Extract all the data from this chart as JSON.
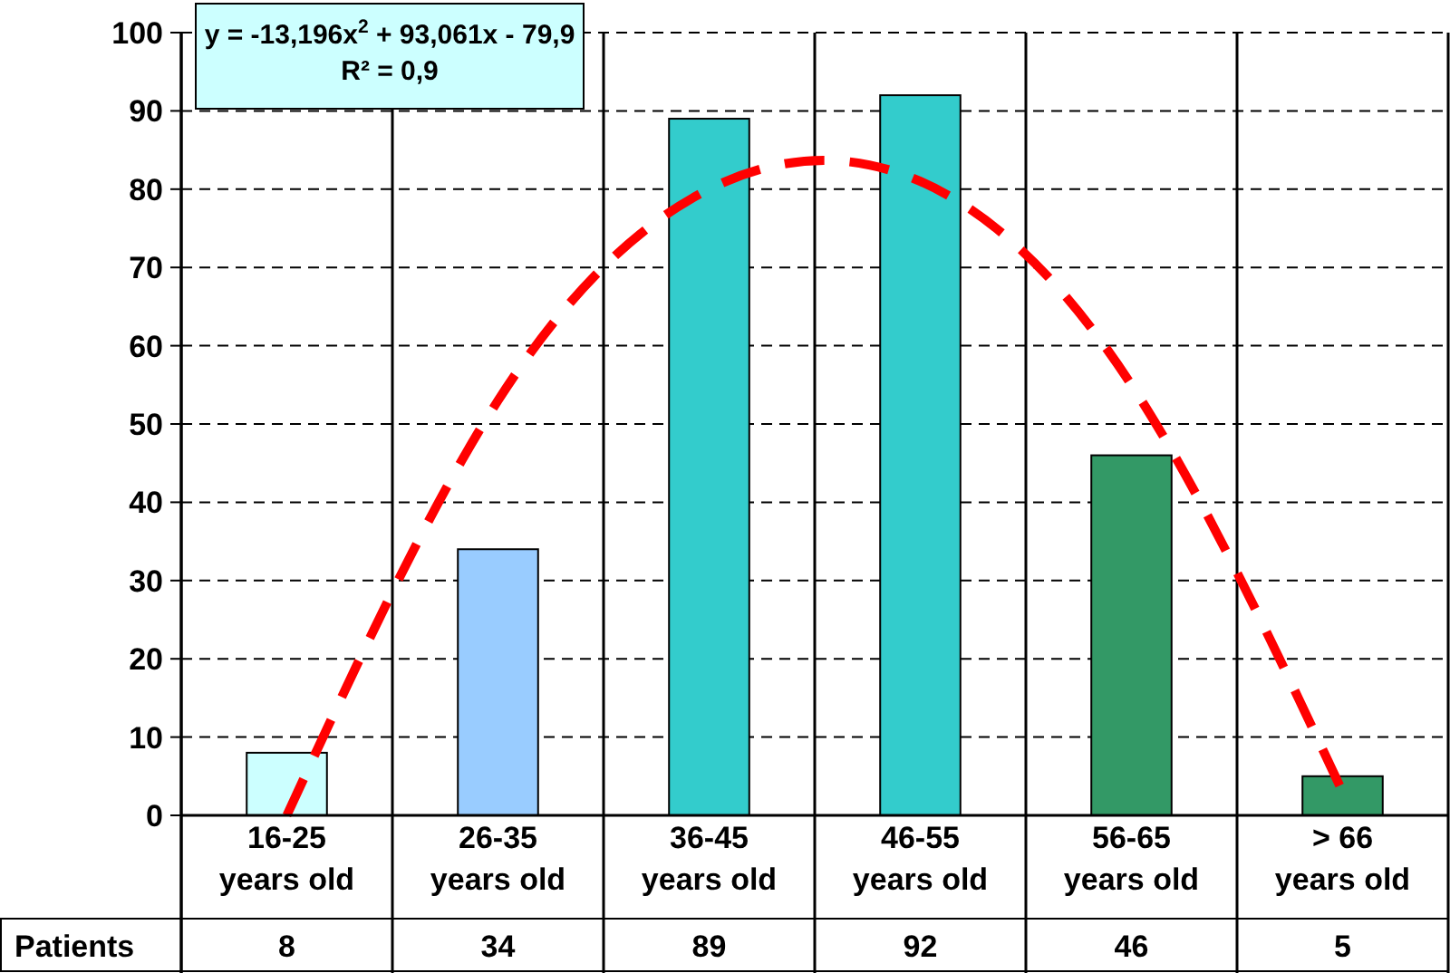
{
  "chart_data": {
    "type": "bar",
    "categories": [
      "16-25\nyears old",
      "26-35\nyears old",
      "36-45\nyears old",
      "46-55\nyears old",
      "56-65\nyears old",
      "> 66\nyears old"
    ],
    "series": [
      {
        "name": "Patients",
        "values": [
          8,
          34,
          89,
          92,
          46,
          5
        ],
        "colors": [
          "#ccffff",
          "#99ccff",
          "#33cccc",
          "#33cccc",
          "#339966",
          "#339966"
        ],
        "value_labels": [
          "8",
          "34",
          "89",
          "92",
          "46",
          "5"
        ]
      },
      {
        "type": "line",
        "color": "#ff0000",
        "line_style": "dashed",
        "values": [
          0,
          53,
          80,
          81,
          55,
          3
        ]
      }
    ],
    "ylim": [
      0,
      100
    ],
    "yticks": [
      0,
      10,
      20,
      30,
      40,
      50,
      60,
      70,
      80,
      90,
      100
    ],
    "grid": true,
    "annotations": [
      "y = -13,196x$^{2}$ + 93,061x - 79,9",
      "R² = 0,9"
    ]
  }
}
